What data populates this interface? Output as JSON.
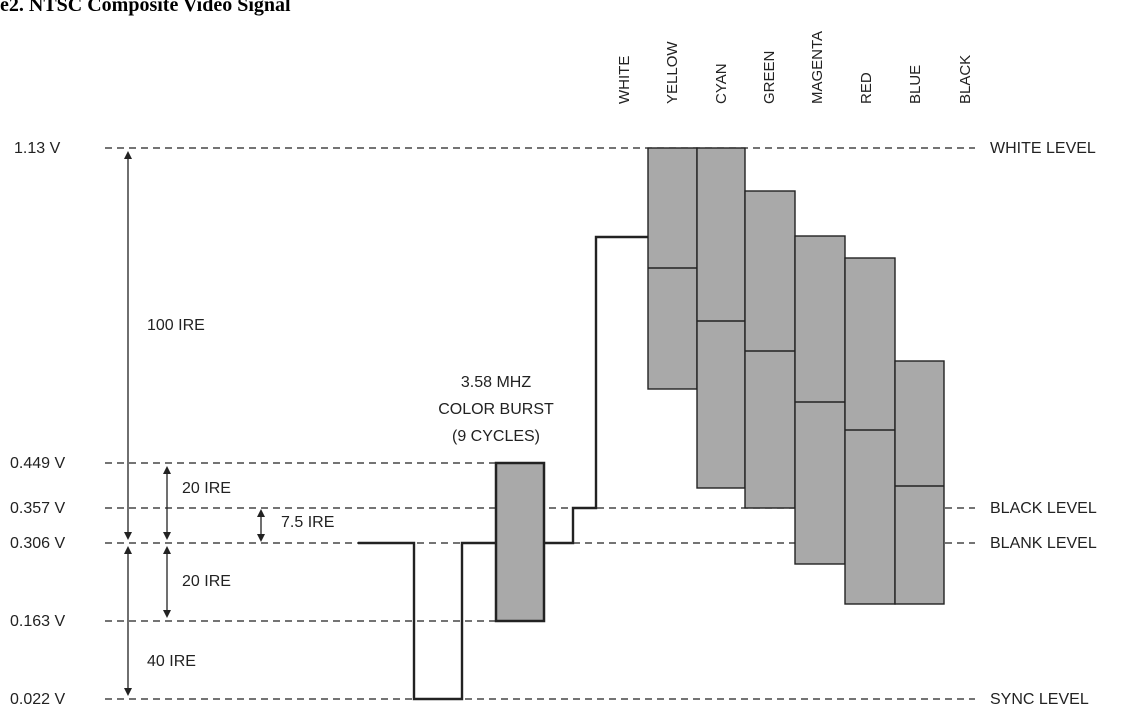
{
  "title": "e2. NTSC Composite Video Signal",
  "colors": {
    "bar_fill": "#a9a9a9",
    "line": "#222222"
  },
  "color_bars": [
    {
      "label": "WHITE"
    },
    {
      "label": "YELLOW"
    },
    {
      "label": "CYAN"
    },
    {
      "label": "GREEN"
    },
    {
      "label": "MAGENTA"
    },
    {
      "label": "RED"
    },
    {
      "label": "BLUE"
    },
    {
      "label": "BLACK"
    }
  ],
  "voltage_levels": [
    {
      "value": "1.13 V"
    },
    {
      "value": "0.449 V"
    },
    {
      "value": "0.357 V"
    },
    {
      "value": "0.306 V"
    },
    {
      "value": "0.163 V"
    },
    {
      "value": "0.022 V"
    }
  ],
  "level_names": {
    "white": "WHITE LEVEL",
    "black": "BLACK LEVEL",
    "blank": "BLANK LEVEL",
    "sync": "SYNC LEVEL"
  },
  "ire_labels": {
    "upper": "100 IRE",
    "burst_top": "20 IRE",
    "setup": "7.5 IRE",
    "burst_bottom": "20 IRE",
    "sync": "40 IRE"
  },
  "color_burst": {
    "line1": "3.58 MHZ",
    "line2": "COLOR BURST",
    "line3": "(9 CYCLES)"
  }
}
